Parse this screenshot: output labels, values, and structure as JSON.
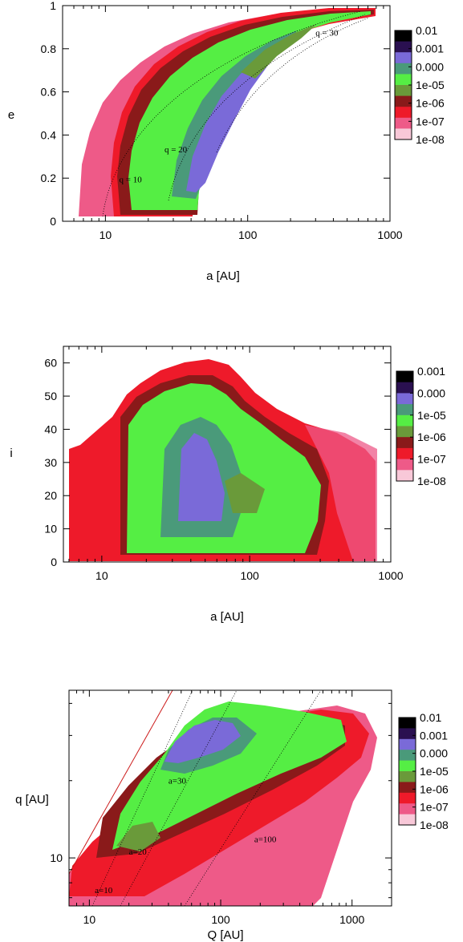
{
  "colors": {
    "black": "#000000",
    "dark_purple": "#2a1050",
    "purple": "#7a6ad8",
    "teal": "#4a9a7a",
    "green": "#55ee44",
    "dark_red": "#8a1a1a",
    "red": "#ee1a2a",
    "pink": "#ee5a88",
    "light_pink": "#f8c8d8",
    "olive": "#6a9a3a"
  },
  "chart_data": [
    {
      "type": "heatmap",
      "panel": "a-e",
      "xlabel": "a [AU]",
      "ylabel": "e",
      "x_scale": "log",
      "xlim": [
        5,
        1000
      ],
      "ylim": [
        0,
        1
      ],
      "x_ticks": [
        "10",
        "100",
        "1000"
      ],
      "x_tick_values": [
        10,
        100,
        1000
      ],
      "y_ticks": [
        "0",
        "0.2",
        "0.4",
        "0.6",
        "0.8",
        "1"
      ],
      "y_tick_values": [
        0,
        0.2,
        0.4,
        0.6,
        0.8,
        1
      ],
      "colorbar": [
        "0.01",
        "0.001",
        "0.000",
        "1e-05",
        "1e-06",
        "1e-07",
        "1e-08"
      ],
      "annotations": [
        {
          "text": "q = 30",
          "x": 300,
          "y": 0.86
        },
        {
          "text": "q = 20",
          "x": 26,
          "y": 0.32
        },
        {
          "text": "q = 10",
          "x": 12.5,
          "y": 0.18
        }
      ]
    },
    {
      "type": "heatmap",
      "panel": "a-i",
      "xlabel": "a [AU]",
      "ylabel": "i",
      "x_scale": "log",
      "xlim": [
        5.5,
        900
      ],
      "ylim": [
        0,
        65
      ],
      "x_ticks": [
        "10",
        "100",
        "1000"
      ],
      "x_tick_values": [
        10,
        100,
        1000
      ],
      "y_ticks": [
        "0",
        "10",
        "20",
        "30",
        "40",
        "50",
        "60"
      ],
      "y_tick_values": [
        0,
        10,
        20,
        30,
        40,
        50,
        60
      ],
      "colorbar": [
        "0.001",
        "0.000",
        "1e-05",
        "1e-06",
        "1e-07",
        "1e-08"
      ]
    },
    {
      "type": "heatmap",
      "panel": "Q-q",
      "xlabel": "Q [AU]",
      "ylabel": "q [AU]",
      "x_scale": "log",
      "y_scale": "log",
      "xlim": [
        7,
        2000
      ],
      "ylim": [
        6.5,
        45
      ],
      "x_ticks": [
        "10",
        "100",
        "1000"
      ],
      "x_tick_values": [
        10,
        100,
        1000
      ],
      "y_ticks": [
        "10"
      ],
      "y_tick_values": [
        10
      ],
      "colorbar": [
        "0.01",
        "0.001",
        "0.000",
        "1e-05",
        "1e-06",
        "1e-07",
        "1e-08"
      ],
      "annotations": [
        {
          "text": "a=30",
          "x": 40,
          "y": 19.5
        },
        {
          "text": "a=20",
          "x": 20,
          "y": 10.3
        },
        {
          "text": "a=100",
          "x": 180,
          "y": 11.5
        },
        {
          "text": "a=10",
          "x": 11,
          "y": 7.3
        }
      ]
    }
  ]
}
